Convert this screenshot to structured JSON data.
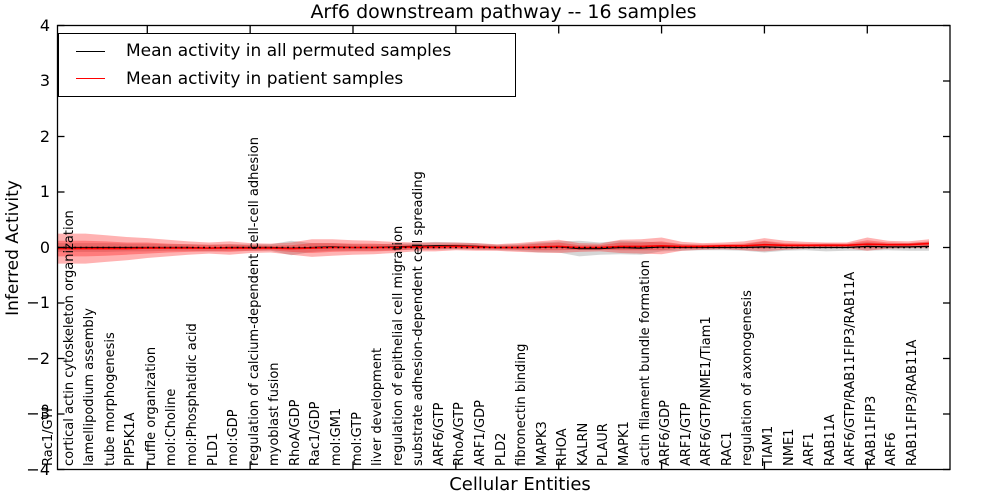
{
  "window": {
    "title": "Arf6 downstream pathway -- 16 samples"
  },
  "chart_data": {
    "type": "area",
    "title": "Arf6 downstream pathway -- 16 samples",
    "xlabel": "Cellular Entities",
    "ylabel": "Inferred Activity",
    "ylim": [
      -4,
      4
    ],
    "ytick_labels": [
      "4",
      "3",
      "2",
      "1",
      "0",
      "−1",
      "−2",
      "−3",
      "−4"
    ],
    "ytick_values": [
      4,
      3,
      2,
      1,
      0,
      -1,
      -2,
      -3,
      -4
    ],
    "grid": false,
    "zero_line_style": "dotted",
    "legend_position": "upper left",
    "categories": [
      "Rac1/GTP",
      "cortical actin cytoskeleton organization",
      "lamellipodium assembly",
      "tube morphogenesis",
      "PIP5K1A",
      "ruffle organization",
      "mol:Choline",
      "mol:Phosphatidic acid",
      "PLD1",
      "mol:GDP",
      "regulation of calcium-dependent cell-cell adhesion",
      "myoblast fusion",
      "RhoA/GDP",
      "Rac1/GDP",
      "mol:GM1",
      "mol:GTP",
      "liver development",
      "regulation of epithelial cell migration",
      "substrate adhesion-dependent cell spreading",
      "ARF6/GTP",
      "RhoA/GTP",
      "ARF1/GDP",
      "PLD2",
      "fibronectin binding",
      "MAPK3",
      "RHOA",
      "KALRN",
      "PLAUR",
      "MAPK1",
      "actin filament bundle formation",
      "ARF6/GDP",
      "ARF1/GTP",
      "ARF6/GTP/NME1/Tiam1",
      "RAC1",
      "regulation of axonogenesis",
      "TIAM1",
      "NME1",
      "ARF1",
      "RAB11A",
      "ARF6/GTP/RAB11FIP3/RAB11A",
      "RAB11FIP3",
      "ARF6",
      "RAB11FIP3/RAB11A"
    ],
    "series": [
      {
        "name": "Mean activity in all permuted samples",
        "color": "#000000",
        "band_color": "rgba(0,0,0,0.16)",
        "values": [
          0,
          0,
          0,
          0,
          0,
          0,
          0,
          -0.01,
          0,
          0,
          0,
          -0.01,
          0,
          0.01,
          0,
          0,
          0.01,
          0.02,
          0.03,
          0.03,
          0.02,
          0,
          0,
          0,
          0.01,
          -0.02,
          -0.02,
          0,
          -0.01,
          0.01,
          0,
          0,
          0,
          0,
          0.01,
          0,
          0,
          0,
          0,
          0.02,
          0.01,
          0.01,
          0.02
        ],
        "band_halfwidth": [
          0.08,
          0.08,
          0.08,
          0.07,
          0.07,
          0.06,
          0.06,
          0.06,
          0.06,
          0.06,
          0.06,
          0.13,
          0.08,
          0.07,
          0.06,
          0.06,
          0.06,
          0.06,
          0.07,
          0.06,
          0.06,
          0.05,
          0.06,
          0.09,
          0.1,
          0.14,
          0.11,
          0.12,
          0.12,
          0.08,
          0.06,
          0.05,
          0.05,
          0.06,
          0.1,
          0.06,
          0.05,
          0.07,
          0.06,
          0.08,
          0.06,
          0.07,
          0.08
        ]
      },
      {
        "name": "Mean activity in patient samples",
        "color": "#ff0000",
        "band_color": "rgba(255,0,0,0.30)",
        "values": [
          -0.02,
          -0.02,
          -0.02,
          -0.02,
          -0.01,
          -0.01,
          -0.01,
          -0.01,
          -0.01,
          -0.01,
          -0.01,
          -0.02,
          -0.01,
          0,
          0,
          0,
          0,
          0.01,
          0.01,
          0.02,
          0.01,
          0,
          0,
          0.01,
          0.02,
          0,
          0,
          0.02,
          0.02,
          0.03,
          0.02,
          0.02,
          0.03,
          0.03,
          0.05,
          0.04,
          0.04,
          0.04,
          0.04,
          0.06,
          0.05,
          0.05,
          0.07
        ],
        "band_halfwidth": [
          0.27,
          0.27,
          0.24,
          0.21,
          0.18,
          0.15,
          0.12,
          0.1,
          0.12,
          0.09,
          0.08,
          0.11,
          0.16,
          0.15,
          0.13,
          0.12,
          0.1,
          0.08,
          0.08,
          0.07,
          0.07,
          0.06,
          0.08,
          0.1,
          0.12,
          0.08,
          0.07,
          0.12,
          0.13,
          0.15,
          0.08,
          0.06,
          0.06,
          0.08,
          0.12,
          0.08,
          0.06,
          0.05,
          0.05,
          0.12,
          0.07,
          0.06,
          0.08
        ],
        "band_inner_halfwidth": [
          0.14,
          0.14,
          0.13,
          0.11,
          0.1,
          0.08,
          0.07,
          0.06,
          0.07,
          0.05,
          0.04,
          0.06,
          0.09,
          0.08,
          0.07,
          0.07,
          0.06,
          0.04,
          0.04,
          0.04,
          0.04,
          0.03,
          0.04,
          0.06,
          0.07,
          0.04,
          0.04,
          0.07,
          0.07,
          0.08,
          0.04,
          0.03,
          0.03,
          0.04,
          0.07,
          0.04,
          0.03,
          0.03,
          0.03,
          0.07,
          0.04,
          0.03,
          0.04
        ]
      }
    ]
  }
}
